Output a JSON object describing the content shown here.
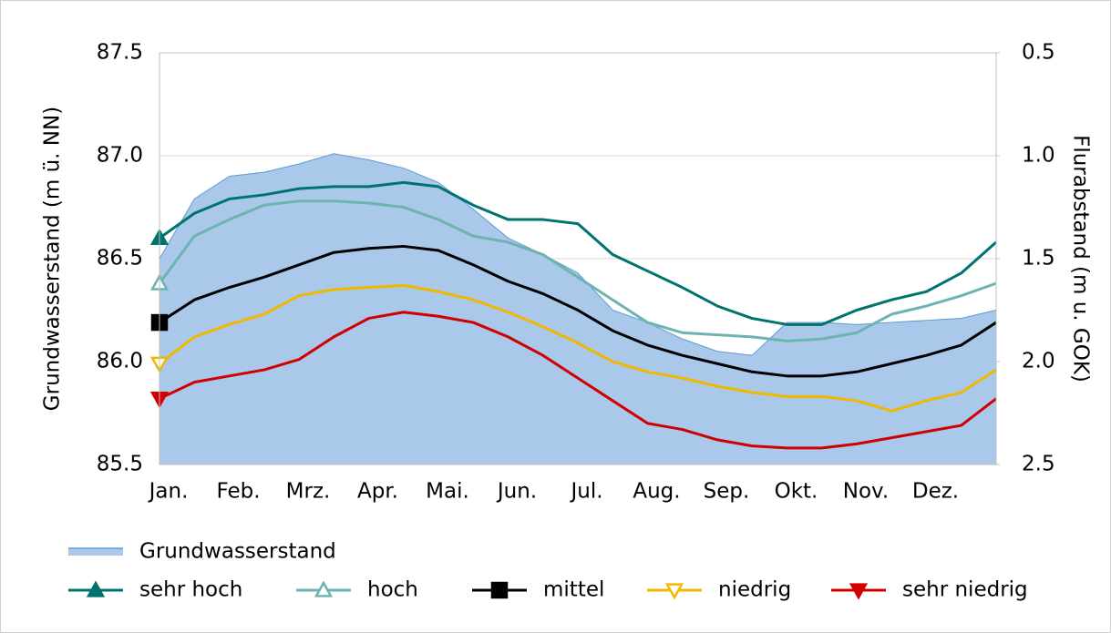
{
  "chart_data": {
    "type": "line",
    "ylabel": "Grundwasserstand (m ü. NN)",
    "y2label": "Flurabstand (m u. GOK)",
    "categories": [
      "Jan.",
      null,
      "Feb.",
      null,
      "Mrz.",
      null,
      "Apr.",
      null,
      "Mai.",
      null,
      "Jun.",
      null,
      "Jul.",
      null,
      "Aug.",
      null,
      "Sep.",
      null,
      "Okt.",
      null,
      "Nov.",
      null,
      "Dez.",
      null,
      null
    ],
    "ylim": [
      85.5,
      87.5
    ],
    "yticks": [
      85.5,
      {
        "value": 86.0,
        "label": "86.0"
      },
      86.5,
      {
        "value": 87.0,
        "label": "87.0"
      },
      87.5
    ],
    "y2lim": [
      2.5,
      0.5
    ],
    "y2ticks": [
      0.5,
      {
        "value": 1.0,
        "label": "1.0"
      },
      1.5,
      {
        "value": 2.0,
        "label": "2.0"
      },
      2.5
    ],
    "grid": true,
    "legend": "bottom",
    "series": [
      {
        "name": "Grundwasserstand",
        "type": "area",
        "color": "#a9c8ea",
        "values": [
          86.5,
          86.79,
          86.9,
          86.92,
          86.96,
          87.01,
          86.98,
          86.94,
          86.87,
          86.74,
          86.6,
          86.52,
          86.43,
          86.25,
          86.19,
          86.11,
          86.05,
          86.03,
          86.19,
          86.19,
          86.18,
          86.19,
          86.2,
          86.21,
          86.25
        ]
      },
      {
        "name": "sehr hoch",
        "color": "#00736e",
        "marker": "triangle-up",
        "filled": true,
        "values": [
          86.6,
          86.72,
          86.79,
          86.81,
          86.84,
          86.85,
          86.85,
          86.87,
          86.85,
          86.76,
          86.69,
          86.69,
          86.67,
          86.52,
          86.44,
          86.36,
          86.27,
          86.21,
          86.18,
          86.18,
          86.25,
          86.3,
          86.34,
          86.43,
          86.58
        ]
      },
      {
        "name": "hoch",
        "color": "#6db3b0",
        "marker": "triangle-up",
        "filled": false,
        "values": [
          86.38,
          86.61,
          86.69,
          86.76,
          86.78,
          86.78,
          86.77,
          86.75,
          86.69,
          86.61,
          86.58,
          86.52,
          86.41,
          86.3,
          86.19,
          86.14,
          86.13,
          86.12,
          86.1,
          86.11,
          86.14,
          86.23,
          86.27,
          86.32,
          86.38
        ]
      },
      {
        "name": "mittel",
        "color": "#000000",
        "marker": "square",
        "filled": true,
        "values": [
          86.19,
          86.3,
          86.36,
          86.41,
          86.47,
          86.53,
          86.55,
          86.56,
          86.54,
          86.47,
          86.39,
          86.33,
          86.25,
          86.15,
          86.08,
          86.03,
          85.99,
          85.95,
          85.93,
          85.93,
          85.95,
          85.99,
          86.03,
          86.08,
          86.19
        ]
      },
      {
        "name": "niedrig",
        "color": "#f2b800",
        "marker": "triangle-down",
        "filled": false,
        "values": [
          85.99,
          86.12,
          86.18,
          86.23,
          86.32,
          86.35,
          86.36,
          86.37,
          86.34,
          86.3,
          86.24,
          86.17,
          86.09,
          86.0,
          85.95,
          85.92,
          85.88,
          85.85,
          85.83,
          85.83,
          85.81,
          85.76,
          85.81,
          85.85,
          85.96
        ]
      },
      {
        "name": "sehr niedrig",
        "color": "#d00000",
        "marker": "triangle-down",
        "filled": true,
        "values": [
          85.82,
          85.9,
          85.93,
          85.96,
          86.01,
          86.12,
          86.21,
          86.24,
          86.22,
          86.19,
          86.12,
          86.03,
          85.92,
          85.81,
          85.7,
          85.67,
          85.62,
          85.59,
          85.58,
          85.58,
          85.6,
          85.63,
          85.66,
          85.69,
          85.82
        ]
      }
    ]
  }
}
